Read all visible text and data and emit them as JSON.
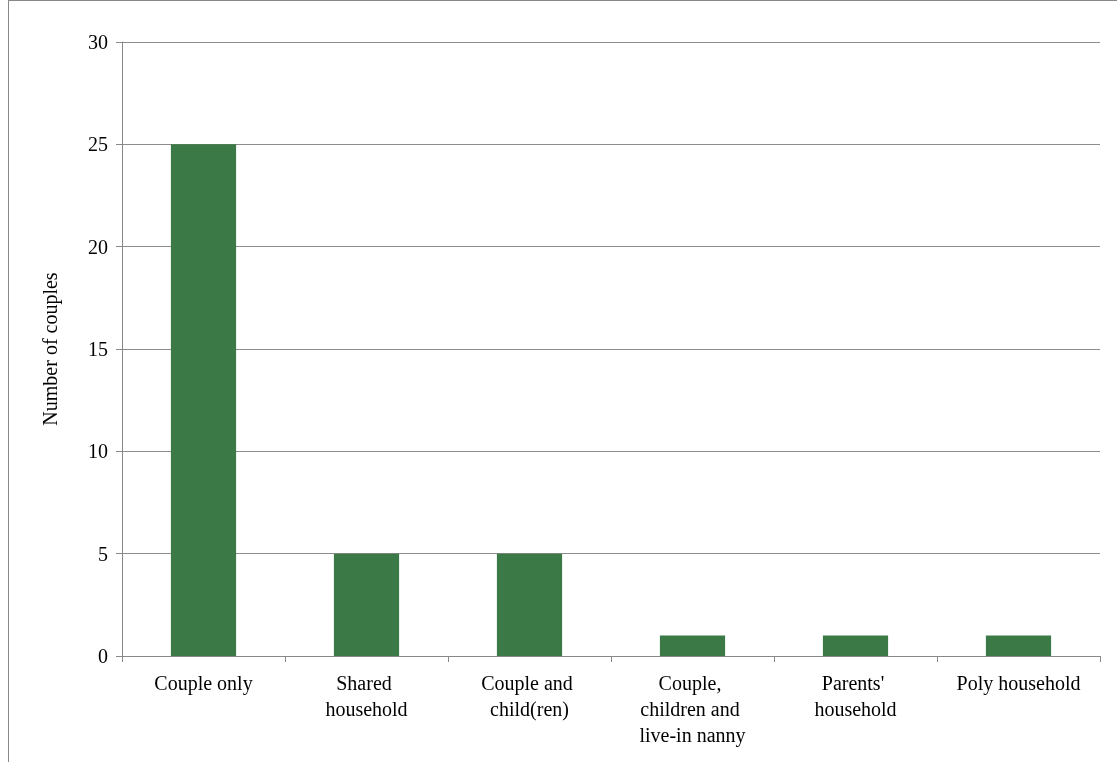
{
  "chart_data": {
    "type": "bar",
    "ylabel": "Number of couples",
    "categories": [
      "Couple only",
      "Shared household",
      "Couple and child(ren)",
      "Couple, children and live-in nanny",
      "Parents' household",
      "Poly household"
    ],
    "values": [
      25,
      5,
      5,
      1,
      1,
      1
    ],
    "color": "#3b7a47",
    "ylim": [
      0,
      30
    ],
    "yticks": [
      0,
      5,
      10,
      15,
      20,
      25,
      30
    ],
    "grid": "y"
  }
}
